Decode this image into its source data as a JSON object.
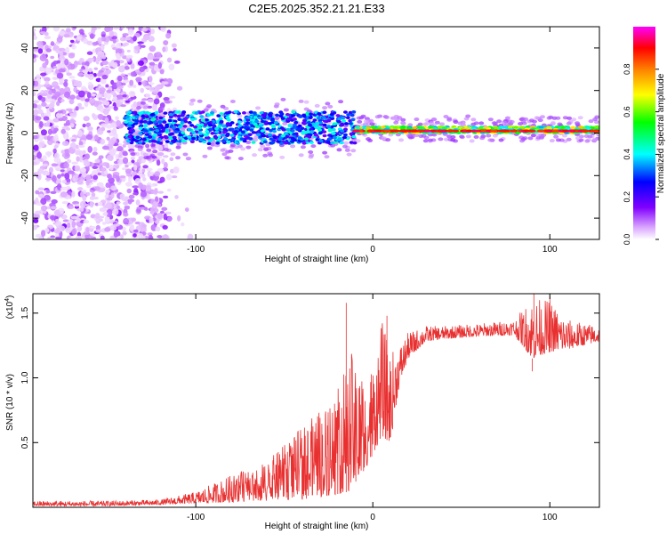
{
  "title": "C2E5.2025.352.21.21.E33",
  "chart_data": [
    {
      "type": "heatmap",
      "name": "spectrogram",
      "xlabel": "Height of straight line (km)",
      "ylabel": "Frequency (Hz)",
      "xlim": [
        -192,
        128
      ],
      "ylim": [
        -50,
        50
      ],
      "x_ticks": [
        -100,
        0,
        100
      ],
      "x_tick_labels": [
        "-100",
        "0",
        "100"
      ],
      "y_ticks": [
        -40,
        -20,
        0,
        20,
        40
      ],
      "y_tick_labels": [
        "-40",
        "-20",
        "0",
        "20",
        "40"
      ],
      "description_of_regions": [
        {
          "x_range": [
            -192,
            -120
          ],
          "y_range": [
            -50,
            50
          ],
          "amplitude_range": [
            0.0,
            0.15
          ]
        },
        {
          "x_range": [
            -140,
            -10
          ],
          "y_range": [
            -5,
            10
          ],
          "amplitude_range": [
            0.2,
            0.4
          ]
        },
        {
          "x_range": [
            -10,
            128
          ],
          "y_range": [
            -2,
            4
          ],
          "amplitude_range": [
            0.3,
            1.0
          ]
        }
      ],
      "colorbar": {
        "label": "Normalized spectral amplitude",
        "range": [
          0,
          1
        ],
        "ticks": [
          0.0,
          0.2,
          0.4,
          0.6,
          0.8
        ],
        "tick_labels": [
          "0.0",
          "0.2",
          "0.4",
          "0.6",
          "0.8"
        ],
        "colors": [
          "#ffffff",
          "#8000ff",
          "#0000ff",
          "#00ffff",
          "#00ff00",
          "#ffff00",
          "#ff8000",
          "#ff0000",
          "#ff00ff"
        ]
      }
    },
    {
      "type": "line",
      "name": "snr",
      "xlabel": "Height of straight line (km)",
      "ylabel": "SNR (10 * v/v)",
      "y_scale_label": "(x10",
      "y_scale_exponent": "4",
      "y_scale_suffix": ")",
      "xlim": [
        -192,
        128
      ],
      "ylim": [
        0,
        1.65
      ],
      "x_ticks": [
        -100,
        0,
        100
      ],
      "x_tick_labels": [
        "-100",
        "0",
        "100"
      ],
      "y_ticks": [
        0.5,
        1.0,
        1.5
      ],
      "y_tick_labels": [
        "0.5",
        "1.0",
        "1.5"
      ],
      "color": "#e83030",
      "envelope": {
        "x": [
          -192,
          -150,
          -120,
          -100,
          -80,
          -60,
          -40,
          -30,
          -20,
          -14,
          -8,
          -2,
          5,
          10,
          15,
          20,
          30,
          40,
          60,
          80,
          90,
          100,
          110,
          128
        ],
        "low": [
          0.01,
          0.01,
          0.02,
          0.03,
          0.04,
          0.05,
          0.06,
          0.08,
          0.1,
          0.12,
          0.2,
          0.35,
          0.55,
          0.5,
          0.95,
          1.15,
          1.28,
          1.3,
          1.32,
          1.33,
          1.15,
          1.2,
          1.22,
          1.28
        ],
        "high": [
          0.05,
          0.05,
          0.06,
          0.12,
          0.25,
          0.35,
          0.62,
          0.75,
          0.9,
          1.25,
          1.1,
          1.0,
          1.45,
          1.2,
          1.25,
          1.35,
          1.4,
          1.4,
          1.42,
          1.45,
          1.62,
          1.6,
          1.45,
          1.4
        ]
      },
      "spikes": [
        {
          "x": -15,
          "y": 1.58
        },
        {
          "x": 8,
          "y": 1.48
        },
        {
          "x": 91,
          "y": 1.65
        },
        {
          "x": 100,
          "y": 1.63
        },
        {
          "x": 90,
          "y": 1.05
        }
      ]
    }
  ]
}
